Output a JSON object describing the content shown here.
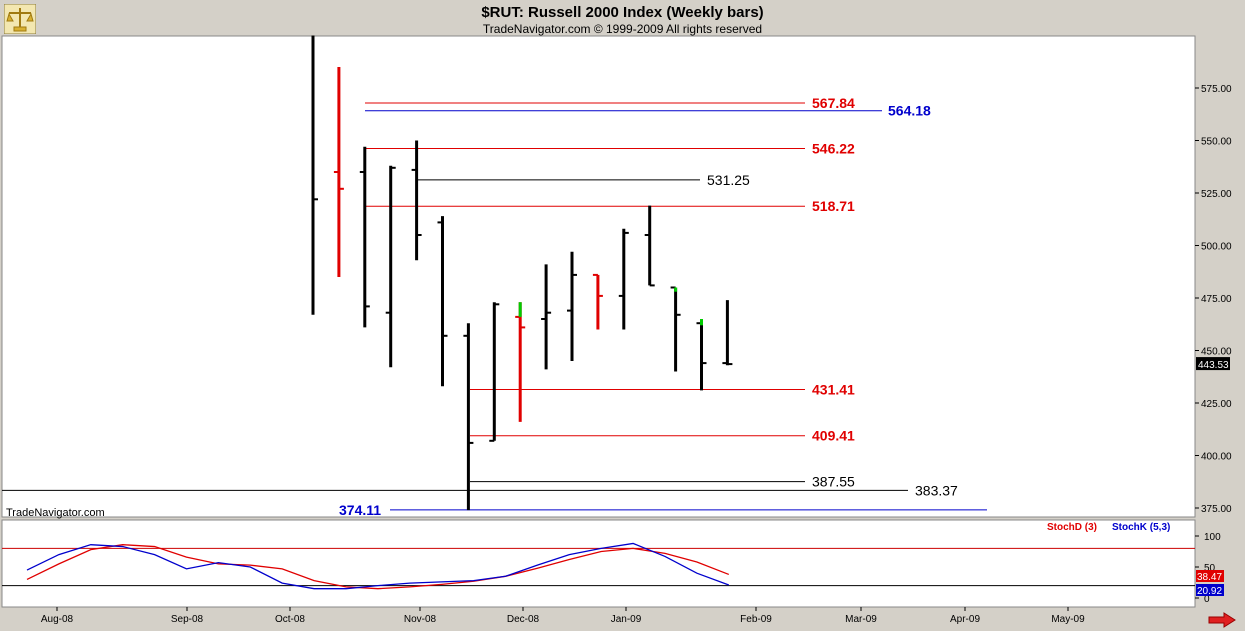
{
  "header": {
    "title": "$RUT:  Russell 2000 Index  (Weekly bars)",
    "subtitle": "TradeNavigator.com © 1999-2009 All rights reserved"
  },
  "watermark": "TradeNavigator.com",
  "icons": {
    "logo": "scales-icon",
    "scroll_right": "arrow-right-icon"
  },
  "colors": {
    "up_bar": "#000000",
    "down_bar": "#ff0000",
    "green_tick": "#00cc00",
    "stochD": "#ff0000",
    "stochK": "#0000ff",
    "accent_red": "#e00000",
    "accent_blue": "#0000cc"
  },
  "chart_data": [
    {
      "type": "ohlc",
      "title": "$RUT:  Russell 2000 Index  (Weekly bars)",
      "ylim": [
        372,
        600
      ],
      "y_ticks": [
        375,
        400,
        425,
        450,
        475,
        500,
        525,
        550,
        575
      ],
      "y_tick_labels": [
        "375.00",
        "400.00",
        "425.00",
        "450.00",
        "475.00",
        "500.00",
        "525.00",
        "550.00",
        "575.00"
      ],
      "last_price_label": "443.53",
      "x_tick_labels": [
        "Aug-08",
        "Sep-08",
        "Oct-08",
        "Nov-08",
        "Dec-08",
        "Jan-09",
        "Feb-09",
        "Mar-09",
        "Apr-09",
        "May-09"
      ],
      "bars": [
        {
          "t": 1,
          "open": null,
          "high": 600,
          "low": 467,
          "close": 522,
          "color": "black"
        },
        {
          "t": 2,
          "open": 535,
          "high": 585,
          "low": 485,
          "close": 527,
          "color": "red"
        },
        {
          "t": 3,
          "open": 535,
          "high": 547,
          "low": 461,
          "close": 471,
          "color": "black"
        },
        {
          "t": 4,
          "open": 468,
          "high": 538,
          "low": 442,
          "close": 537,
          "color": "black"
        },
        {
          "t": 5,
          "open": 536,
          "high": 550,
          "low": 493,
          "close": 505,
          "color": "black"
        },
        {
          "t": 6,
          "open": 511,
          "high": 514,
          "low": 433,
          "close": 457,
          "color": "black"
        },
        {
          "t": 7,
          "open": 457,
          "high": 463,
          "low": 374,
          "close": 406,
          "color": "black"
        },
        {
          "t": 8,
          "open": 407,
          "high": 473,
          "low": 407,
          "close": 472,
          "color": "black"
        },
        {
          "t": 9,
          "open": 466,
          "high": 473,
          "low": 416,
          "close": 461,
          "color": "red"
        },
        {
          "t": 10,
          "open": 465,
          "high": 491,
          "low": 441,
          "close": 468,
          "color": "black"
        },
        {
          "t": 11,
          "open": 469,
          "high": 497,
          "low": 445,
          "close": 486,
          "color": "black"
        },
        {
          "t": 12,
          "open": 486,
          "high": 486,
          "low": 460,
          "close": 476,
          "color": "red"
        },
        {
          "t": 13,
          "open": 476,
          "high": 508,
          "low": 460,
          "close": 506,
          "color": "black"
        },
        {
          "t": 14,
          "open": 505,
          "high": 519,
          "low": 481,
          "close": 481,
          "color": "black"
        },
        {
          "t": 15,
          "open": 480,
          "high": 480,
          "low": 440,
          "close": 467,
          "color": "black"
        },
        {
          "t": 16,
          "open": 463,
          "high": 465,
          "low": 431,
          "close": 444,
          "color": "black"
        },
        {
          "t": 17,
          "open": 444,
          "high": 474,
          "low": 443,
          "close": 443.53,
          "color": "black"
        }
      ],
      "levels": [
        {
          "value": 567.84,
          "label": "567.84",
          "color": "red"
        },
        {
          "value": 564.18,
          "label": "564.18",
          "color": "blue"
        },
        {
          "value": 546.22,
          "label": "546.22",
          "color": "red"
        },
        {
          "value": 531.25,
          "label": "531.25",
          "color": "black"
        },
        {
          "value": 518.71,
          "label": "518.71",
          "color": "red"
        },
        {
          "value": 431.41,
          "label": "431.41",
          "color": "red"
        },
        {
          "value": 409.41,
          "label": "409.41",
          "color": "red"
        },
        {
          "value": 387.55,
          "label": "387.55",
          "color": "black"
        },
        {
          "value": 383.37,
          "label": "383.37",
          "color": "black"
        },
        {
          "value": 374.11,
          "label": "374.11",
          "color": "blue"
        }
      ]
    },
    {
      "type": "line",
      "ylim": [
        0,
        100
      ],
      "y_ticks": [
        100,
        50,
        0
      ],
      "y_tick_labels": [
        "100",
        "50",
        "0"
      ],
      "reference_lines": [
        80,
        20
      ],
      "series": [
        {
          "name": "StochD (3)",
          "color": "red",
          "last_label": "38.47",
          "values": [
            30,
            55,
            78,
            86,
            83,
            66,
            55,
            53,
            47,
            28,
            18,
            15,
            18,
            22,
            27,
            35,
            48,
            62,
            75,
            80,
            72,
            58,
            38
          ]
        },
        {
          "name": "StochK (5,3)",
          "color": "blue",
          "last_label": "20.92",
          "values": [
            45,
            70,
            86,
            83,
            70,
            47,
            57,
            50,
            24,
            15,
            15,
            20,
            24,
            26,
            28,
            35,
            53,
            70,
            80,
            88,
            67,
            40,
            21
          ]
        }
      ]
    }
  ]
}
